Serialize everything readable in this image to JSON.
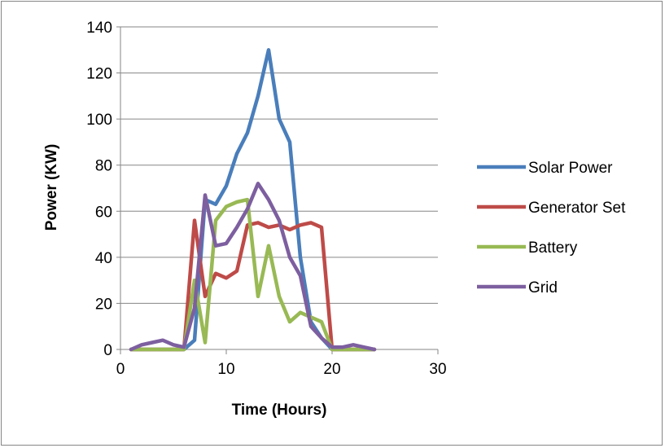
{
  "chart_data": {
    "type": "line",
    "title": "",
    "xlabel": "Time (Hours)",
    "ylabel": "Power (KW)",
    "xlim": [
      0,
      30
    ],
    "ylim": [
      0,
      140
    ],
    "xticks": [
      0,
      10,
      20,
      30
    ],
    "yticks": [
      0,
      20,
      40,
      60,
      80,
      100,
      120,
      140
    ],
    "grid": "horizontal",
    "legend_position": "right",
    "series": [
      {
        "name": "Solar Power",
        "color": "#4a7ebb",
        "x": [
          1,
          2,
          3,
          4,
          5,
          6,
          7,
          8,
          9,
          10,
          11,
          12,
          13,
          14,
          15,
          16,
          17,
          18,
          19,
          20,
          21,
          22,
          23,
          24
        ],
        "values": [
          0,
          0,
          0,
          0,
          0,
          0,
          4,
          65,
          63,
          71,
          85,
          94,
          110,
          130,
          100,
          90,
          40,
          12,
          5,
          0,
          0,
          0,
          0,
          0
        ]
      },
      {
        "name": "Generator Set",
        "color": "#be4b48",
        "x": [
          1,
          2,
          3,
          4,
          5,
          6,
          7,
          8,
          9,
          10,
          11,
          12,
          13,
          14,
          15,
          16,
          17,
          18,
          19,
          20,
          21,
          22,
          23,
          24
        ],
        "values": [
          0,
          0,
          0,
          0,
          0,
          0,
          56,
          23,
          33,
          31,
          34,
          54,
          55,
          53,
          54,
          52,
          54,
          55,
          53,
          0,
          0,
          0,
          0,
          0
        ]
      },
      {
        "name": "Battery",
        "color": "#98b954",
        "x": [
          1,
          2,
          3,
          4,
          5,
          6,
          7,
          8,
          9,
          10,
          11,
          12,
          13,
          14,
          15,
          16,
          17,
          18,
          19,
          20,
          21,
          22,
          23,
          24
        ],
        "values": [
          0,
          0,
          0,
          0,
          0,
          0,
          30,
          3,
          56,
          62,
          64,
          65,
          23,
          45,
          23,
          12,
          16,
          14,
          12,
          0,
          0,
          0,
          0,
          0
        ]
      },
      {
        "name": "Grid",
        "color": "#7d5fa0",
        "x": [
          1,
          2,
          3,
          4,
          5,
          6,
          7,
          8,
          9,
          10,
          11,
          12,
          13,
          14,
          15,
          16,
          17,
          18,
          19,
          20,
          21,
          22,
          23,
          24
        ],
        "values": [
          0,
          2,
          3,
          4,
          2,
          1,
          18,
          67,
          45,
          46,
          53,
          61,
          72,
          65,
          56,
          40,
          32,
          10,
          5,
          1,
          1,
          2,
          1,
          0
        ]
      }
    ]
  }
}
